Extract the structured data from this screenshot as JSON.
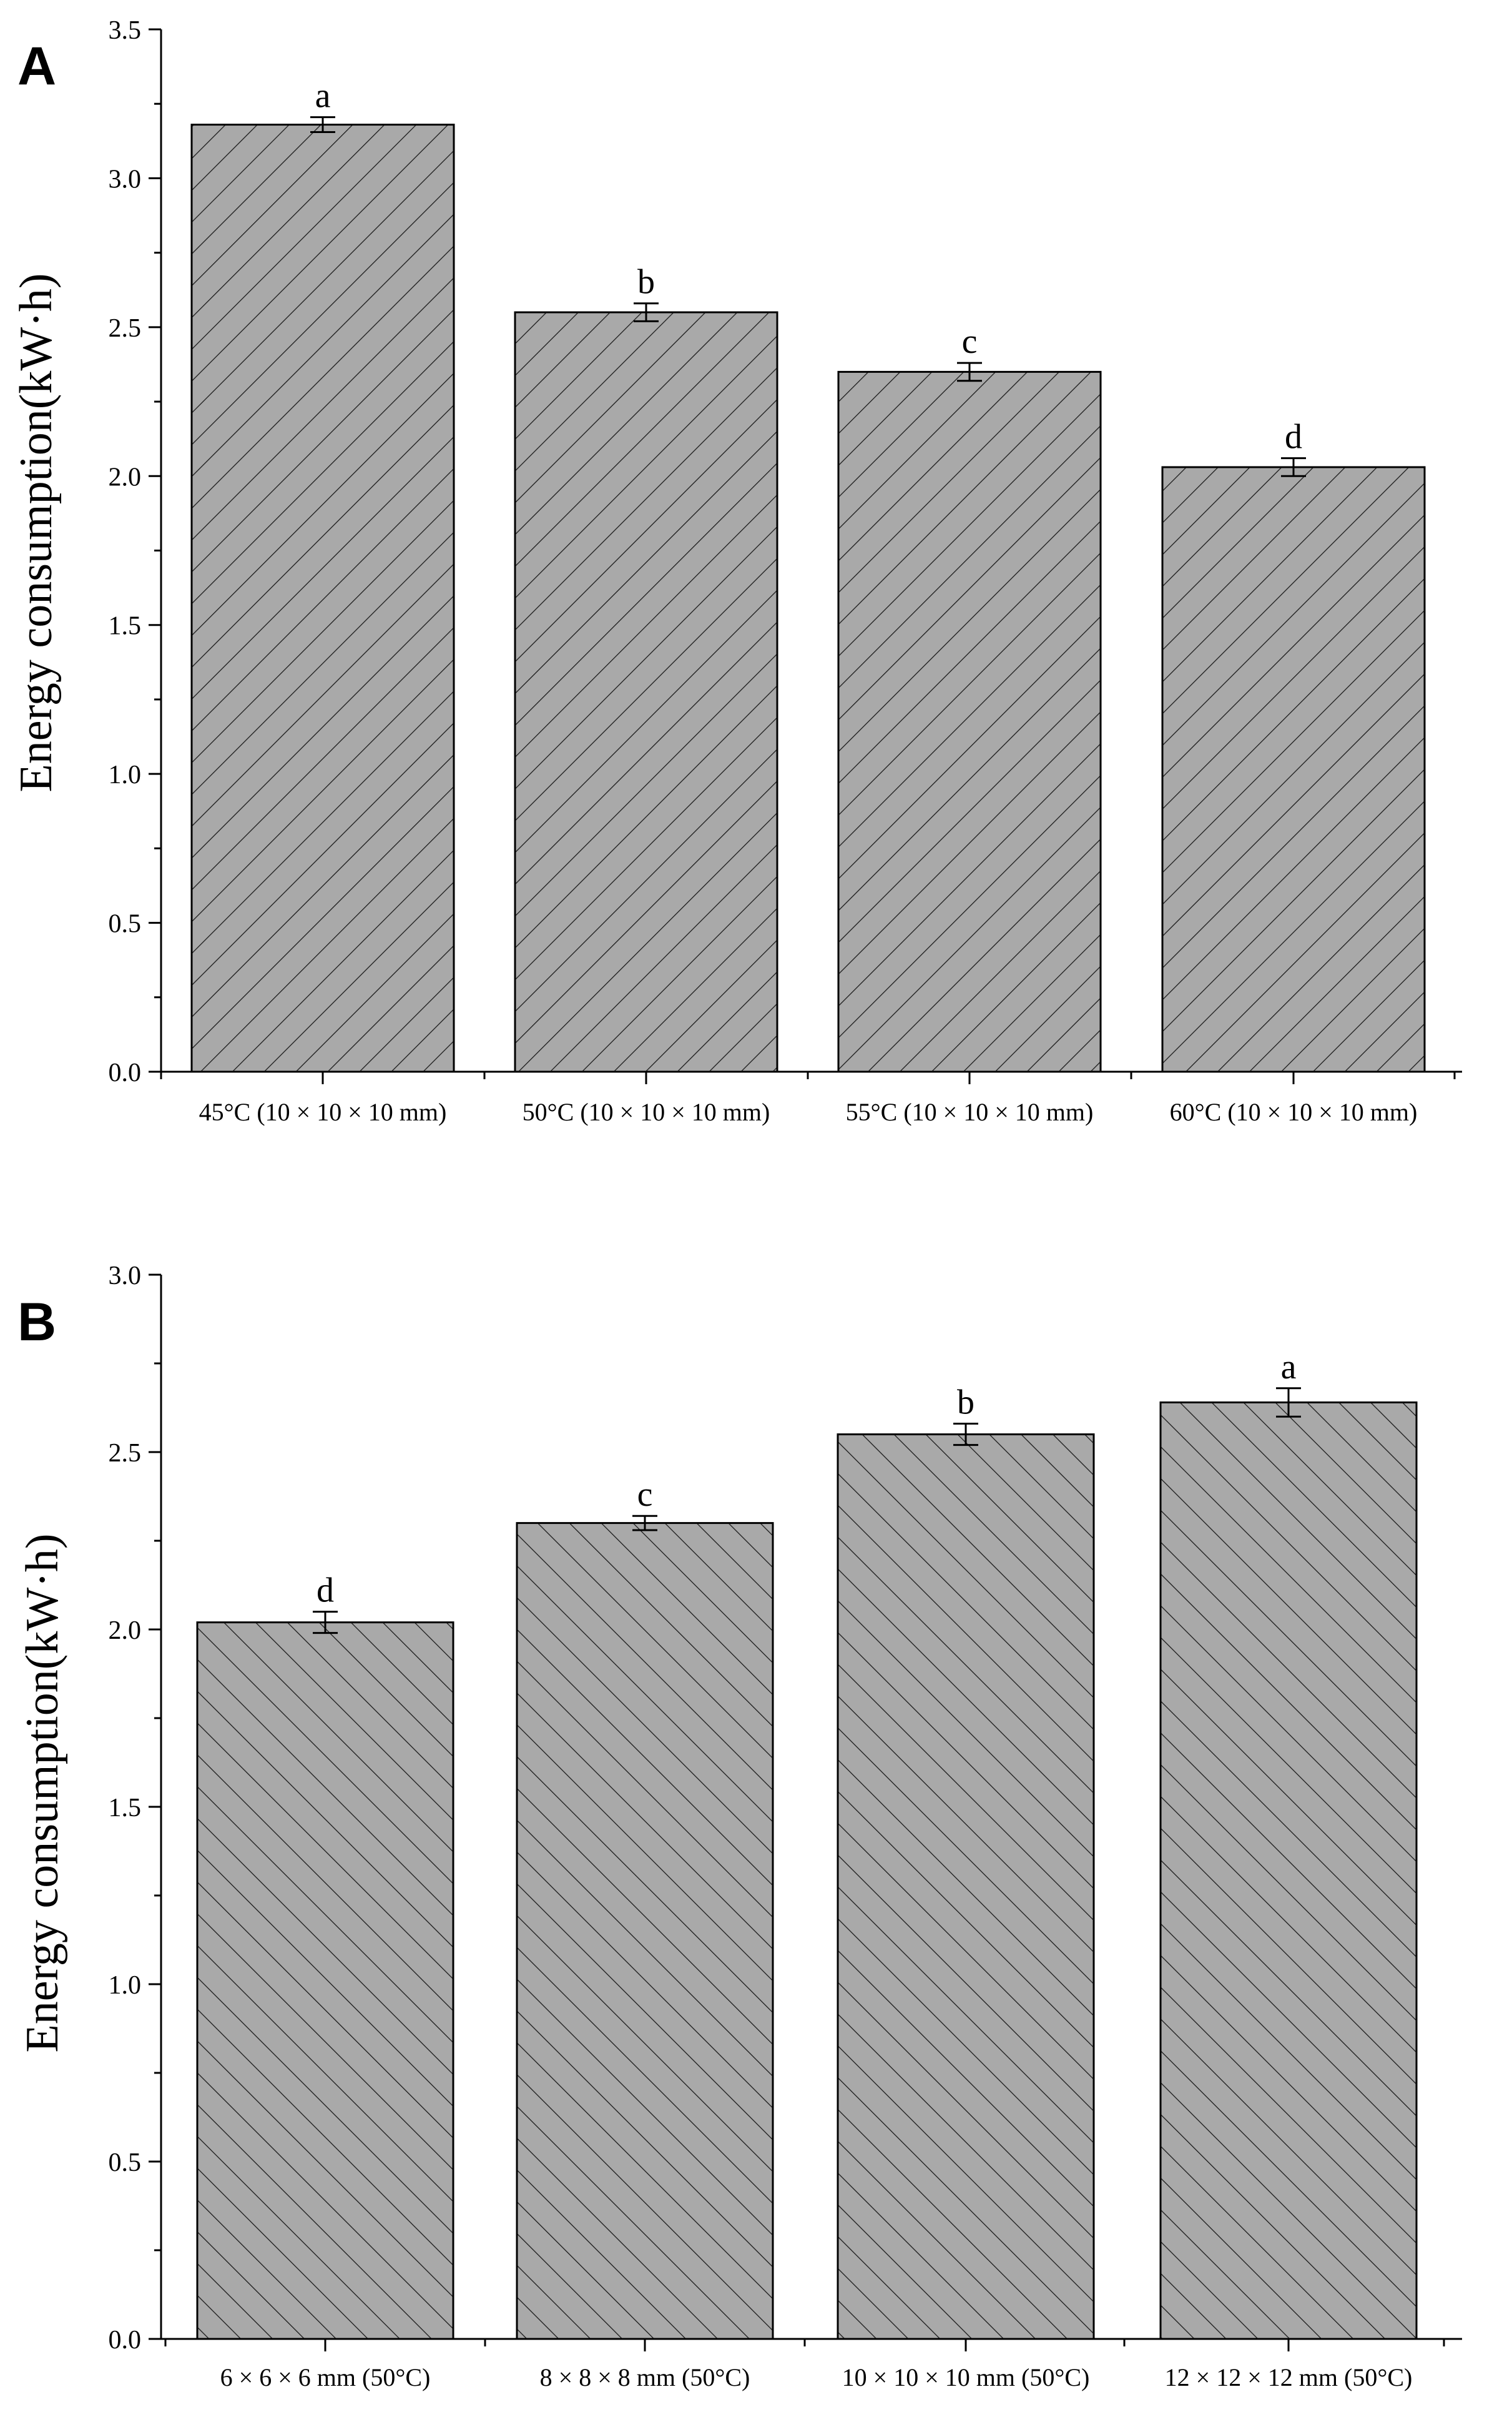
{
  "chart_data": [
    {
      "type": "bar",
      "panel_label": "A",
      "title": "",
      "xlabel": "",
      "ylabel": "Energy consumption(kW·h)",
      "ylim": [
        0,
        3.5
      ],
      "yticks": [
        "0.0",
        "0.5",
        "1.0",
        "1.5",
        "2.0",
        "2.5",
        "3.0",
        "3.5"
      ],
      "categories": [
        "45°C (10 × 10 × 10 mm)",
        "50°C (10 × 10 × 10 mm)",
        "55°C (10 × 10 × 10 mm)",
        "60°C (10 × 10 × 10 mm)"
      ],
      "values": [
        3.18,
        2.55,
        2.35,
        2.03
      ],
      "errors": [
        0.025,
        0.03,
        0.03,
        0.03
      ],
      "significance_letters": [
        "a",
        "b",
        "c",
        "d"
      ],
      "hatch": "forward-diagonal",
      "bar_color": "#a9a9a9",
      "grid": false
    },
    {
      "type": "bar",
      "panel_label": "B",
      "title": "",
      "xlabel": "",
      "ylabel": "Energy consumption(kW·h)",
      "ylim": [
        0,
        3.0
      ],
      "yticks": [
        "0.0",
        "0.5",
        "1.0",
        "1.5",
        "2.0",
        "2.5",
        "3.0"
      ],
      "categories": [
        "6 × 6 × 6 mm (50°C)",
        "8 × 8 × 8 mm (50°C)",
        "10 × 10 × 10 mm (50°C)",
        "12 × 12 × 12 mm (50°C)"
      ],
      "values": [
        2.02,
        2.3,
        2.55,
        2.64
      ],
      "errors": [
        0.03,
        0.02,
        0.03,
        0.04
      ],
      "significance_letters": [
        "d",
        "c",
        "b",
        "a"
      ],
      "hatch": "back-diagonal",
      "bar_color": "#a9a9a9",
      "grid": false
    }
  ]
}
